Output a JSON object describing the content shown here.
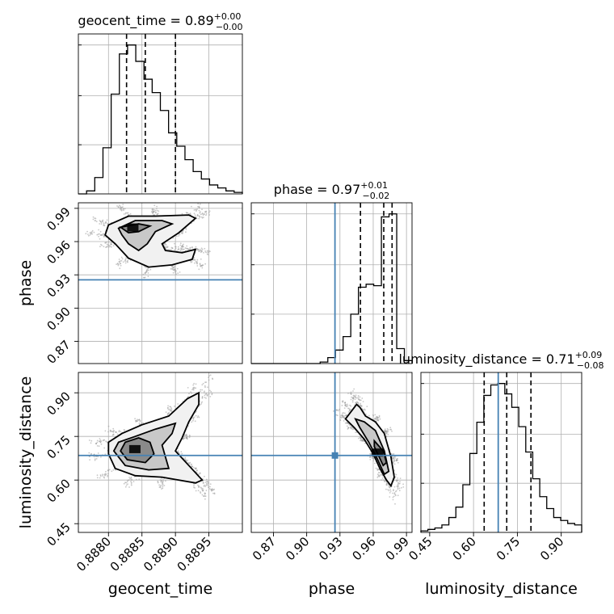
{
  "chart_data": {
    "type": "corner",
    "parameters": [
      {
        "name": "geocent_time",
        "label": "geocent_time",
        "title": {
          "prefix": "geocent_time = ",
          "value": "0.89",
          "plus": "+0.00",
          "minus": "−0.00"
        },
        "range": [
          0.88755,
          0.89
        ],
        "ticks": [
          {
            "v": 0.888,
            "label": "0.8880"
          },
          {
            "v": 0.8885,
            "label": "0.8885"
          },
          {
            "v": 0.889,
            "label": "0.8890"
          },
          {
            "v": 0.8895,
            "label": "0.8895"
          }
        ],
        "quantiles": [
          0.88827,
          0.88855,
          0.889
        ],
        "truth": null,
        "hist": [
          0,
          0.02,
          0.11,
          0.31,
          0.67,
          0.94,
          1.0,
          0.89,
          0.77,
          0.68,
          0.56,
          0.41,
          0.32,
          0.23,
          0.15,
          0.1,
          0.06,
          0.04,
          0.02,
          0.01
        ]
      },
      {
        "name": "phase",
        "label": "phase",
        "title": {
          "prefix": "phase = ",
          "value": "0.97",
          "plus": "+0.01",
          "minus": "−0.02"
        },
        "range": [
          0.85,
          0.995
        ],
        "ticks": [
          {
            "v": 0.87,
            "label": "0.87"
          },
          {
            "v": 0.9,
            "label": "0.90"
          },
          {
            "v": 0.93,
            "label": "0.93"
          },
          {
            "v": 0.96,
            "label": "0.96"
          },
          {
            "v": 0.99,
            "label": "0.99"
          }
        ],
        "quantiles": [
          0.9485,
          0.9695,
          0.977
        ],
        "truth": 0.9255,
        "hist": [
          0,
          0,
          0,
          0,
          0,
          0,
          0,
          0,
          0,
          0.01,
          0.04,
          0.09,
          0.18,
          0.33,
          0.51,
          0.53,
          0.52,
          0.98,
          1.0,
          0.1,
          0.02
        ]
      },
      {
        "name": "luminosity_distance",
        "label": "luminosity_distance",
        "title": {
          "prefix": "luminosity_distance = ",
          "value": "0.71",
          "plus": "+0.09",
          "minus": "−0.08"
        },
        "range": [
          0.42,
          0.97
        ],
        "ticks": [
          {
            "v": 0.45,
            "label": "0.45"
          },
          {
            "v": 0.6,
            "label": "0.60"
          },
          {
            "v": 0.75,
            "label": "0.75"
          },
          {
            "v": 0.9,
            "label": "0.90"
          }
        ],
        "quantiles": [
          0.6364,
          0.7136,
          0.7964
        ],
        "truth": 0.6845,
        "hist": [
          0.01,
          0.02,
          0.03,
          0.05,
          0.1,
          0.17,
          0.32,
          0.53,
          0.74,
          0.92,
          0.99,
          1.0,
          0.93,
          0.84,
          0.71,
          0.54,
          0.36,
          0.24,
          0.16,
          0.1,
          0.08,
          0.06,
          0.05
        ]
      }
    ],
    "contours_2d": [
      {
        "x": "geocent_time",
        "y": "phase",
        "levels": [
          [
            [
              0.888,
              0.975
            ],
            [
              0.8883,
              0.983
            ],
            [
              0.8887,
              0.983
            ],
            [
              0.8892,
              0.984
            ],
            [
              0.8893,
              0.981
            ],
            [
              0.88905,
              0.968
            ],
            [
              0.8888,
              0.958
            ],
            [
              0.88885,
              0.952
            ],
            [
              0.8891,
              0.95
            ],
            [
              0.8893,
              0.953
            ],
            [
              0.88925,
              0.944
            ],
            [
              0.88895,
              0.939
            ],
            [
              0.8886,
              0.937
            ],
            [
              0.8883,
              0.945
            ],
            [
              0.8881,
              0.958
            ],
            [
              0.88795,
              0.966
            ]
          ],
          [
            [
              0.88815,
              0.972
            ],
            [
              0.8884,
              0.979
            ],
            [
              0.8888,
              0.979
            ],
            [
              0.88895,
              0.976
            ],
            [
              0.8887,
              0.969
            ],
            [
              0.88858,
              0.958
            ],
            [
              0.88845,
              0.952
            ],
            [
              0.8883,
              0.958
            ],
            [
              0.8882,
              0.966
            ]
          ],
          [
            [
              0.88818,
              0.973
            ],
            [
              0.88845,
              0.976
            ],
            [
              0.88862,
              0.974
            ],
            [
              0.88845,
              0.969
            ],
            [
              0.8883,
              0.968
            ]
          ]
        ]
      },
      {
        "x": "geocent_time",
        "y": "luminosity_distance",
        "levels": [
          [
            [
              0.888,
              0.69
            ],
            [
              0.8881,
              0.64
            ],
            [
              0.8884,
              0.615
            ],
            [
              0.8888,
              0.61
            ],
            [
              0.8893,
              0.59
            ],
            [
              0.8894,
              0.6
            ],
            [
              0.8892,
              0.65
            ],
            [
              0.889,
              0.7
            ],
            [
              0.8891,
              0.745
            ],
            [
              0.8892,
              0.8
            ],
            [
              0.88935,
              0.86
            ],
            [
              0.88935,
              0.9
            ],
            [
              0.88918,
              0.88
            ],
            [
              0.8889,
              0.82
            ],
            [
              0.8885,
              0.79
            ],
            [
              0.8882,
              0.76
            ],
            [
              0.888,
              0.73
            ]
          ],
          [
            [
              0.88808,
              0.7
            ],
            [
              0.88825,
              0.65
            ],
            [
              0.8886,
              0.635
            ],
            [
              0.8889,
              0.64
            ],
            [
              0.88885,
              0.68
            ],
            [
              0.8888,
              0.72
            ],
            [
              0.88895,
              0.76
            ],
            [
              0.889,
              0.795
            ],
            [
              0.8887,
              0.775
            ],
            [
              0.8884,
              0.75
            ],
            [
              0.88815,
              0.73
            ]
          ],
          [
            [
              0.88818,
              0.7
            ],
            [
              0.88828,
              0.67
            ],
            [
              0.88855,
              0.66
            ],
            [
              0.88868,
              0.69
            ],
            [
              0.88862,
              0.73
            ],
            [
              0.88845,
              0.745
            ],
            [
              0.88825,
              0.73
            ]
          ]
        ]
      },
      {
        "x": "phase",
        "y": "luminosity_distance",
        "levels": [
          [
            [
              0.935,
              0.81
            ],
            [
              0.94,
              0.835
            ],
            [
              0.945,
              0.86
            ],
            [
              0.948,
              0.85
            ],
            [
              0.953,
              0.82
            ],
            [
              0.962,
              0.8
            ],
            [
              0.97,
              0.76
            ],
            [
              0.976,
              0.68
            ],
            [
              0.979,
              0.61
            ],
            [
              0.976,
              0.58
            ],
            [
              0.972,
              0.6
            ],
            [
              0.966,
              0.64
            ],
            [
              0.96,
              0.69
            ],
            [
              0.952,
              0.74
            ],
            [
              0.943,
              0.78
            ]
          ],
          [
            [
              0.944,
              0.81
            ],
            [
              0.952,
              0.8
            ],
            [
              0.962,
              0.77
            ],
            [
              0.97,
              0.7
            ],
            [
              0.974,
              0.63
            ],
            [
              0.97,
              0.62
            ],
            [
              0.964,
              0.67
            ],
            [
              0.956,
              0.73
            ],
            [
              0.948,
              0.78
            ]
          ],
          [
            [
              0.961,
              0.735
            ],
            [
              0.969,
              0.7
            ],
            [
              0.972,
              0.66
            ],
            [
              0.969,
              0.65
            ],
            [
              0.964,
              0.69
            ],
            [
              0.961,
              0.715
            ]
          ]
        ]
      }
    ]
  }
}
